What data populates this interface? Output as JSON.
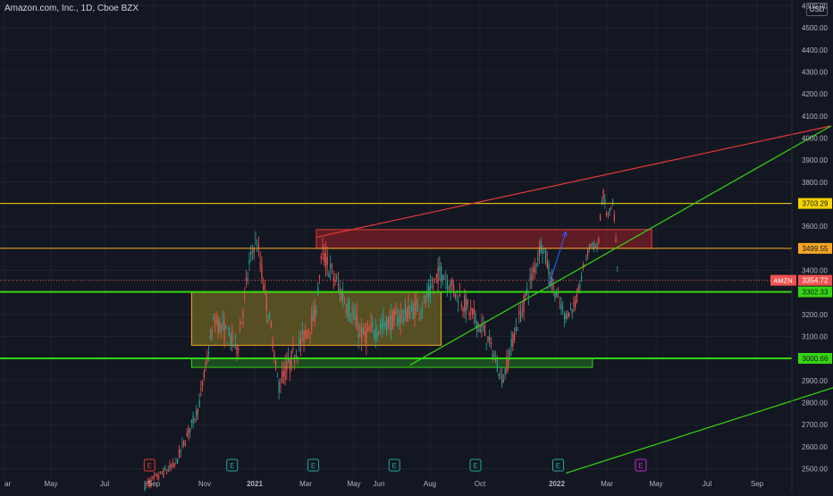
{
  "header": {
    "title": "Amazon.com, Inc., 1D, Cboe BZX",
    "currency": "USD"
  },
  "chart_data": {
    "type": "candlestick",
    "symbol": "AMZN",
    "x_tick_labels": [
      "ar",
      "May",
      "Jul",
      "Sep",
      "Nov",
      "2021",
      "Mar",
      "May",
      "Jun",
      "Aug",
      "Oct",
      "2022",
      "Mar",
      "May",
      "Jul",
      "Sep"
    ],
    "y_tick_labels": [
      "2500.00",
      "2600.00",
      "2700.00",
      "2800.00",
      "2900.00",
      "3000.00",
      "3100.00",
      "3200.00",
      "3300.00",
      "3400.00",
      "3500.00",
      "3600.00",
      "3700.00",
      "3800.00",
      "3900.00",
      "4000.00",
      "4100.00",
      "4200.00",
      "4300.00",
      "4400.00",
      "4500.00",
      "4600.00"
    ],
    "ylim": [
      2480,
      4610
    ],
    "price_labels": [
      {
        "label": "",
        "value": "3703.29",
        "color": "#f5d400"
      },
      {
        "label": "",
        "value": "3499.55",
        "color": "#f5a623"
      },
      {
        "label": "AMZN",
        "value": "3354.72",
        "color": "#ef5350"
      },
      {
        "label": "",
        "value": "3302.33",
        "color": "#35d611"
      },
      {
        "label": "",
        "value": "3000.66",
        "color": "#35d611"
      }
    ],
    "horizontal_lines": [
      {
        "price": 3703.29,
        "color": "#f5d400"
      },
      {
        "price": 3499.55,
        "color": "#f5a623"
      },
      {
        "price": 3302.33,
        "color": "#35d611"
      },
      {
        "price": 3000.66,
        "color": "#35d611"
      }
    ],
    "zones": [
      {
        "start_day": 80,
        "end_day": 295,
        "top": 3585,
        "bottom": 3500,
        "fill": "#7a1f26",
        "stroke": "#e53935"
      },
      {
        "start_day": 0,
        "end_day": 160,
        "top": 3300,
        "bottom": 3060,
        "fill": "#6e6324",
        "stroke": "#f5a623"
      },
      {
        "start_day": 0,
        "end_day": 257,
        "top": 3000,
        "bottom": 2960,
        "fill": "#1f5f23",
        "stroke": "#35d611"
      }
    ],
    "trend_lines": [
      {
        "start_day": 80,
        "start_price": 3550,
        "end_day": 410,
        "end_price": 4055,
        "color": "#e53935"
      },
      {
        "start_day": 140,
        "start_price": 2970,
        "end_day": 410,
        "end_price": 4055,
        "color": "#35d611"
      },
      {
        "start_day": 240,
        "start_price": 2480,
        "end_day": 470,
        "end_price": 3000,
        "color": "#35d611"
      }
    ],
    "arrow": {
      "start_day": 228,
      "start_price": 3310,
      "end_day": 240,
      "end_price": 3575,
      "color": "#2962ff"
    },
    "earnings_markers": [
      {
        "day": -27,
        "label": "E",
        "color": "#e53935"
      },
      {
        "day": 26,
        "label": "E",
        "color": "#26a69a"
      },
      {
        "day": 78,
        "label": "E",
        "color": "#26a69a"
      },
      {
        "day": 130,
        "label": "E",
        "color": "#26a69a"
      },
      {
        "day": 182,
        "label": "E",
        "color": "#26a69a"
      },
      {
        "day": 235,
        "label": "E",
        "color": "#26a69a"
      },
      {
        "day": 288,
        "label": "E",
        "color": "#c02bd1"
      }
    ],
    "candles": [
      {
        "start_day": -30,
        "end_day": -10,
        "start_price": 2420,
        "end_price": 2520,
        "vol": 40
      },
      {
        "start_day": -10,
        "end_day": 5,
        "start_price": 2520,
        "end_price": 2780,
        "vol": 50
      },
      {
        "start_day": 5,
        "end_day": 15,
        "start_price": 2780,
        "end_price": 3180,
        "vol": 60
      },
      {
        "start_day": 15,
        "end_day": 30,
        "start_price": 3180,
        "end_price": 3050,
        "vol": 90
      },
      {
        "start_day": 30,
        "end_day": 38,
        "start_price": 3050,
        "end_price": 3450,
        "vol": 90
      },
      {
        "start_day": 38,
        "end_day": 42,
        "start_price": 3450,
        "end_price": 3540,
        "vol": 60
      },
      {
        "start_day": 42,
        "end_day": 52,
        "start_price": 3540,
        "end_price": 3100,
        "vol": 100
      },
      {
        "start_day": 52,
        "end_day": 56,
        "start_price": 3100,
        "end_price": 2880,
        "vol": 50
      },
      {
        "start_day": 56,
        "end_day": 80,
        "start_price": 2880,
        "end_price": 3200,
        "vol": 90
      },
      {
        "start_day": 80,
        "end_day": 84,
        "start_price": 3200,
        "end_price": 3480,
        "vol": 50
      },
      {
        "start_day": 84,
        "end_day": 110,
        "start_price": 3480,
        "end_price": 3100,
        "vol": 100
      },
      {
        "start_day": 110,
        "end_day": 150,
        "start_price": 3100,
        "end_price": 3250,
        "vol": 90
      },
      {
        "start_day": 150,
        "end_day": 160,
        "start_price": 3250,
        "end_price": 3400,
        "vol": 80
      },
      {
        "start_day": 160,
        "end_day": 190,
        "start_price": 3400,
        "end_price": 3100,
        "vol": 90
      },
      {
        "start_day": 190,
        "end_day": 200,
        "start_price": 3100,
        "end_price": 2900,
        "vol": 60
      },
      {
        "start_day": 200,
        "end_day": 207,
        "start_price": 2900,
        "end_price": 3100,
        "vol": 70
      },
      {
        "start_day": 207,
        "end_day": 220,
        "start_price": 3100,
        "end_price": 3400,
        "vol": 80
      },
      {
        "start_day": 220,
        "end_day": 225,
        "start_price": 3400,
        "end_price": 3530,
        "vol": 70
      },
      {
        "start_day": 225,
        "end_day": 232,
        "start_price": 3530,
        "end_price": 3330,
        "vol": 80
      },
      {
        "start_day": 232,
        "end_day": 240,
        "start_price": 3330,
        "end_price": 3190,
        "vol": 60
      },
      {
        "start_day": 240,
        "end_day": 247,
        "start_price": 3190,
        "end_price": 3250,
        "vol": 50
      },
      {
        "start_day": 247,
        "end_day": 252,
        "start_price": 3250,
        "end_price": 3420,
        "vol": 50
      },
      {
        "start_day": 252,
        "end_day": 256,
        "start_price": 3420,
        "end_price": 3520,
        "vol": 40
      },
      {
        "start_day": 256,
        "end_day": 261,
        "start_price": 3520,
        "end_price": 3500,
        "vol": 40
      },
      {
        "start_day": 261,
        "end_day": 264,
        "start_price": 3500,
        "end_price": 3760,
        "vol": 40
      },
      {
        "start_day": 264,
        "end_day": 267,
        "start_price": 3760,
        "end_price": 3640,
        "vol": 50
      },
      {
        "start_day": 267,
        "end_day": 271,
        "start_price": 3640,
        "end_price": 3700,
        "vol": 40
      },
      {
        "start_day": 271,
        "end_day": 274,
        "start_price": 3700,
        "end_price": 3340,
        "vol": 50
      },
      {
        "start_day": 274,
        "end_day": 275,
        "start_price": 3340,
        "end_price": 3355,
        "vol": 20
      }
    ]
  }
}
